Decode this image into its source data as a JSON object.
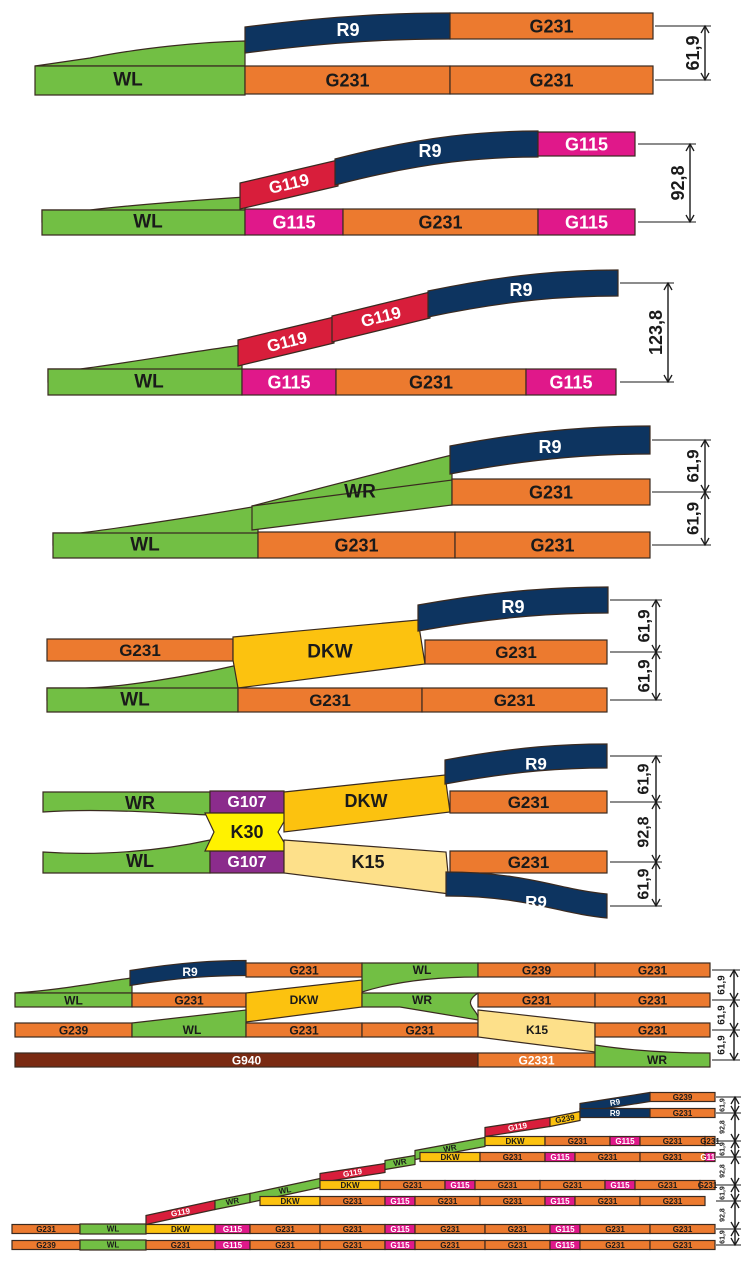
{
  "colors": {
    "green": "#72bf44",
    "navy": "#0d3460",
    "orange": "#ec7a2f",
    "magenta": "#e0188a",
    "red": "#d81e3b",
    "yellow": "#fcc20f",
    "light_yellow": "#fde08a",
    "purple": "#8b2c8c",
    "bright_yellow": "#fff200",
    "brown": "#7a2a12",
    "outline": "#3a2a20"
  },
  "labels": {
    "wl": "WL",
    "wr": "WR",
    "r9": "R9",
    "g231": "G231",
    "g115": "G115",
    "g119": "G119",
    "g239": "G239",
    "g107": "G107",
    "g940": "G940",
    "g2331": "G2331",
    "dkw": "DKW",
    "k30": "K30",
    "k15": "K15"
  },
  "dimensions": {
    "d619": "61,9",
    "d928": "92,8",
    "d1238": "123,8"
  }
}
